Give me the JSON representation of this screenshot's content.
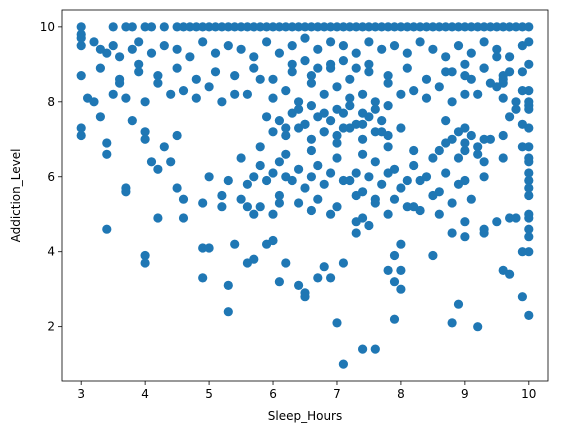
{
  "chart_data": {
    "type": "scatter",
    "title": "",
    "xlabel": "Sleep_Hours",
    "ylabel": "Addiction_Level",
    "xlim": [
      2.7,
      10.3
    ],
    "ylim": [
      0.55,
      10.45
    ],
    "xticks": [
      3,
      4,
      5,
      6,
      7,
      8,
      9,
      10
    ],
    "yticks": [
      2,
      4,
      6,
      8,
      10
    ],
    "xtick_labels": [
      "3",
      "4",
      "5",
      "6",
      "7",
      "8",
      "9",
      "10"
    ],
    "ytick_labels": [
      "2",
      "4",
      "6",
      "8",
      "10"
    ],
    "grid": false,
    "legend": "none",
    "marker_color": "#1f77b4",
    "series": [
      {
        "x": [
          3.0,
          3.0,
          3.0,
          3.0,
          3.0,
          3.2,
          3.3,
          3.4,
          3.4,
          3.6,
          3.7,
          3.8,
          3.9,
          4.0,
          4.0,
          4.1,
          4.2,
          4.3,
          4.4,
          4.5,
          3.5,
          3.7,
          3.8,
          4.0,
          4.1,
          4.3,
          4.5,
          4.6,
          4.7,
          4.8,
          4.9,
          5.0,
          5.1,
          5.2,
          5.3,
          5.4,
          5.5,
          5.6,
          5.7,
          5.8,
          5.9,
          6.0,
          6.1,
          6.2,
          6.3,
          6.4,
          6.5,
          6.6,
          6.7,
          6.8,
          6.9,
          7.0,
          7.1,
          7.2,
          7.3,
          7.4,
          7.5,
          7.6,
          7.7,
          7.8,
          7.9,
          8.0,
          8.1,
          8.2,
          8.3,
          8.4,
          8.5,
          8.6,
          8.7,
          8.8,
          8.9,
          9.0,
          9.1,
          9.2,
          9.3,
          9.4,
          9.5,
          9.6,
          9.7,
          9.8,
          9.9,
          10.0,
          10.0,
          10.0,
          10.0,
          10.0,
          10.0,
          10.0,
          10.0,
          10.0,
          10.0,
          10.0,
          10.0,
          9.7,
          9.6,
          9.5,
          9.9,
          9.8,
          9.6,
          9.4,
          4.0,
          4.0,
          3.4,
          3.7,
          3.7,
          4.2,
          4.5,
          4.6,
          4.9,
          4.9,
          5.0,
          5.3,
          5.3,
          5.4,
          5.6,
          5.7,
          5.9,
          6.0,
          6.1,
          6.2,
          6.4,
          6.5,
          6.5,
          6.7,
          6.8,
          6.9,
          7.0,
          7.1,
          7.1,
          7.3,
          7.4,
          7.5,
          7.6,
          7.9,
          8.0,
          8.0,
          8.5,
          8.8,
          8.9,
          9.0,
          9.2,
          9.3,
          9.6,
          9.7,
          9.9,
          10.0,
          10.0,
          10.0,
          8.0,
          7.9,
          7.8,
          7.9,
          5.6,
          5.7,
          5.2,
          6.1,
          6.0,
          6.6,
          6.9,
          7.3,
          7.4,
          7.6,
          7.8,
          8.1,
          8.3,
          8.6,
          8.8,
          9.0,
          9.3,
          9.5,
          9.7,
          9.8,
          9.9,
          10.0,
          10.0,
          10.0,
          3.0,
          3.2,
          3.3,
          3.4,
          3.5,
          3.6,
          3.8,
          3.9,
          4.1,
          4.3,
          4.5,
          4.7,
          4.9,
          5.1,
          5.3,
          5.5,
          5.7,
          5.9,
          6.1,
          6.3,
          6.5,
          6.7,
          6.9,
          7.1,
          7.3,
          7.5,
          7.7,
          7.9,
          8.1,
          8.3,
          8.5,
          8.7,
          8.9,
          9.1,
          9.3,
          9.5,
          9.7,
          9.9,
          3.0,
          3.3,
          3.6,
          3.9,
          4.2,
          4.5,
          4.8,
          5.1,
          5.4,
          5.7,
          6.0,
          6.3,
          6.6,
          6.9,
          7.2,
          7.5,
          7.8,
          8.1,
          8.4,
          8.7,
          9.0,
          9.3,
          9.6,
          9.9,
          3.1,
          3.5,
          4.0,
          4.4,
          4.8,
          5.2,
          5.6,
          6.0,
          6.4,
          6.8,
          7.2,
          7.6,
          8.0,
          8.4,
          8.8,
          9.2,
          9.6,
          10.0,
          5.9,
          6.1,
          6.3,
          6.5,
          6.7,
          6.9,
          7.1,
          7.3,
          7.5,
          7.7,
          6.0,
          6.2,
          6.4,
          6.6,
          6.8,
          7.0,
          7.2,
          7.4,
          7.6,
          7.8,
          5.8,
          6.2,
          6.6,
          7.0,
          7.4,
          7.8,
          8.2,
          5.5,
          5.8,
          6.1,
          6.4,
          6.7,
          7.0,
          7.3,
          7.6,
          7.9,
          8.2,
          8.5,
          5.0,
          5.3,
          5.6,
          5.9,
          6.2,
          6.5,
          6.8,
          7.1,
          7.4,
          7.7,
          8.0,
          8.3,
          8.6,
          8.9,
          4.6,
          4.9,
          5.2,
          5.5,
          5.8,
          6.1,
          6.4,
          6.7,
          7.0,
          7.3,
          7.6,
          7.9,
          8.2,
          8.5,
          8.8,
          9.1,
          4.2,
          4.6,
          5.0,
          5.4,
          5.8,
          6.2,
          6.6,
          7.0,
          7.4,
          7.8,
          8.2,
          8.6,
          9.0,
          9.4,
          6.3,
          6.5,
          6.7,
          6.9,
          7.1,
          7.3,
          7.5,
          6.4,
          6.6,
          6.8,
          7.0,
          7.2,
          7.4,
          7.6,
          7.8,
          6.2,
          6.5,
          6.8,
          7.1,
          7.4,
          7.7,
          8.0,
          5.7,
          6.0,
          6.3,
          6.6,
          6.9,
          7.2,
          7.5,
          7.8,
          8.1,
          8.4,
          8.7,
          9.0,
          9.3,
          8.8,
          8.9,
          9.0,
          9.1,
          9.2,
          8.6,
          8.7,
          8.9,
          9.0,
          9.2,
          9.3,
          8.8,
          9.0,
          9.1,
          9.3,
          9.5,
          9.6,
          8.7,
          9.0,
          9.3,
          9.6,
          9.9,
          10.0,
          9.8,
          9.7,
          9.9,
          10.0
        ],
        "y": [
          10.0,
          9.8,
          9.5,
          7.3,
          7.1,
          8.0,
          7.6,
          6.9,
          6.6,
          8.5,
          8.1,
          7.5,
          9.0,
          7.2,
          7.0,
          6.4,
          6.2,
          6.8,
          6.4,
          7.1,
          10.0,
          10.0,
          10.0,
          10.0,
          10.0,
          10.0,
          10.0,
          10.0,
          10.0,
          10.0,
          10.0,
          10.0,
          10.0,
          10.0,
          10.0,
          10.0,
          10.0,
          10.0,
          10.0,
          10.0,
          10.0,
          10.0,
          10.0,
          10.0,
          10.0,
          10.0,
          10.0,
          10.0,
          10.0,
          10.0,
          10.0,
          10.0,
          10.0,
          10.0,
          10.0,
          10.0,
          10.0,
          10.0,
          10.0,
          10.0,
          10.0,
          10.0,
          10.0,
          10.0,
          10.0,
          10.0,
          10.0,
          10.0,
          10.0,
          10.0,
          10.0,
          10.0,
          10.0,
          10.0,
          10.0,
          10.0,
          10.0,
          10.0,
          10.0,
          10.0,
          10.0,
          10.0,
          9.6,
          9.0,
          8.3,
          7.9,
          7.3,
          6.8,
          6.4,
          5.9,
          5.5,
          4.9,
          4.6,
          8.8,
          8.5,
          9.2,
          7.4,
          7.8,
          6.5,
          7.0,
          3.9,
          3.7,
          4.6,
          5.7,
          5.6,
          4.9,
          5.7,
          4.9,
          4.1,
          3.3,
          4.1,
          3.1,
          2.4,
          4.2,
          3.7,
          3.8,
          4.2,
          4.3,
          3.2,
          3.7,
          3.1,
          2.9,
          2.8,
          3.3,
          3.6,
          3.3,
          2.1,
          3.7,
          1.0,
          4.5,
          1.4,
          4.7,
          1.4,
          2.2,
          3.5,
          4.2,
          3.9,
          2.1,
          2.6,
          4.4,
          2.0,
          4.6,
          3.5,
          3.4,
          2.8,
          2.3,
          4.0,
          4.4,
          3.0,
          3.2,
          3.5,
          3.9,
          5.2,
          5.0,
          5.2,
          5.3,
          5.0,
          5.1,
          5.0,
          4.8,
          4.9,
          5.4,
          5.0,
          5.2,
          5.1,
          5.0,
          4.5,
          4.8,
          4.5,
          4.8,
          4.9,
          4.9,
          4.0,
          5.0,
          5.7,
          6.1,
          9.7,
          9.6,
          9.4,
          9.3,
          9.5,
          9.2,
          9.4,
          9.6,
          9.3,
          9.5,
          9.4,
          9.2,
          9.6,
          9.3,
          9.5,
          9.4,
          9.2,
          9.6,
          9.3,
          9.5,
          9.7,
          9.4,
          9.6,
          9.5,
          9.3,
          9.6,
          9.4,
          9.5,
          9.3,
          9.6,
          9.4,
          9.2,
          9.5,
          9.3,
          9.6,
          9.4,
          9.2,
          9.5,
          8.7,
          8.9,
          8.6,
          8.8,
          8.7,
          8.9,
          8.6,
          8.8,
          8.7,
          8.9,
          8.6,
          8.8,
          8.7,
          8.9,
          8.6,
          8.8,
          8.7,
          8.9,
          8.6,
          8.8,
          8.7,
          8.9,
          8.6,
          8.8,
          8.1,
          8.2,
          8.0,
          8.2,
          8.1,
          8.0,
          8.2,
          8.1,
          8.0,
          8.2,
          8.1,
          8.0,
          8.2,
          8.1,
          8.0,
          8.2,
          8.1,
          8.0,
          7.6,
          7.5,
          7.7,
          7.4,
          7.6,
          7.5,
          7.7,
          7.4,
          7.6,
          7.5,
          7.2,
          7.1,
          7.3,
          7.0,
          7.2,
          7.1,
          7.3,
          7.0,
          7.2,
          7.1,
          6.8,
          6.6,
          6.7,
          6.9,
          6.6,
          6.8,
          6.7,
          6.5,
          6.3,
          6.4,
          6.2,
          6.3,
          6.5,
          6.1,
          6.4,
          6.2,
          6.3,
          6.5,
          6.0,
          5.9,
          5.8,
          5.9,
          6.0,
          5.7,
          5.8,
          5.9,
          5.6,
          5.8,
          5.7,
          5.9,
          5.6,
          5.8,
          5.4,
          5.3,
          5.5,
          5.4,
          5.2,
          5.5,
          5.3,
          5.4,
          5.2,
          5.5,
          5.3,
          5.4,
          5.2,
          5.5,
          5.3,
          5.4,
          8.5,
          8.3,
          8.4,
          8.2,
          8.6,
          8.3,
          8.5,
          8.4,
          8.2,
          8.5,
          8.3,
          8.4,
          8.2,
          8.5,
          9.0,
          9.1,
          8.9,
          9.0,
          9.1,
          8.9,
          9.0,
          7.8,
          7.9,
          7.7,
          7.8,
          7.9,
          7.7,
          7.8,
          7.9,
          7.3,
          7.4,
          7.2,
          7.3,
          7.4,
          7.2,
          7.3,
          6.0,
          6.1,
          5.9,
          6.0,
          6.1,
          5.9,
          6.0,
          6.1,
          5.9,
          6.0,
          6.1,
          5.9,
          6.0,
          7.0,
          7.2,
          6.9,
          7.1,
          6.8,
          6.7,
          6.9,
          6.5,
          6.7,
          6.6,
          6.4,
          8.8,
          9.0,
          8.6,
          8.9,
          8.4,
          8.7,
          7.5,
          7.3,
          7.0,
          7.1,
          6.8,
          6.5,
          8.0,
          7.6,
          8.3,
          7.8
        ]
      }
    ]
  }
}
